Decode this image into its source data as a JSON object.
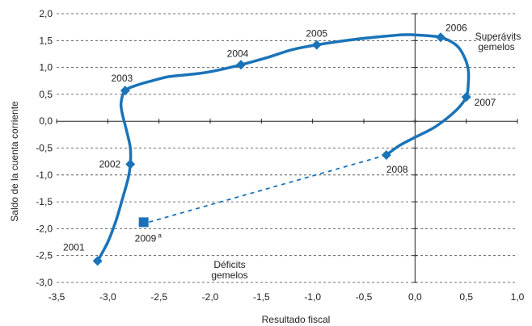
{
  "chart_data": {
    "type": "line",
    "title": "",
    "xlabel": "Resultado fiscal",
    "ylabel": "Saldo de la cuenta corriente",
    "xlim": [
      -3.5,
      1.0
    ],
    "ylim": [
      -3.0,
      2.0
    ],
    "x_ticks": [
      "-3,5",
      "-3,0",
      "-2,5",
      "-2,0",
      "-1,5",
      "-1,0",
      "-0,5",
      "0,0",
      "0,5",
      "1,0"
    ],
    "y_ticks": [
      "2,0",
      "1,5",
      "1,0",
      "0,5",
      "0,0",
      "-0,5",
      "-1,0",
      "-1,5",
      "-2,0",
      "-2,5",
      "-3,0"
    ],
    "x_tick_values": [
      -3.5,
      -3.0,
      -2.5,
      -2.0,
      -1.5,
      -1.0,
      -0.5,
      0.0,
      0.5,
      1.0
    ],
    "y_tick_values": [
      2.0,
      1.5,
      1.0,
      0.5,
      0.0,
      -0.5,
      -1.0,
      -1.5,
      -2.0,
      -2.5,
      -3.0
    ],
    "grid": "horizontal-dashed",
    "color": "#1a73b8",
    "points": [
      {
        "label": "2001",
        "x": -3.1,
        "y": -2.6
      },
      {
        "label": "2002",
        "x": -2.78,
        "y": -0.8
      },
      {
        "label": "2003",
        "x": -2.83,
        "y": 0.57
      },
      {
        "label": "2004",
        "x": -1.7,
        "y": 1.05
      },
      {
        "label": "2005",
        "x": -0.96,
        "y": 1.42
      },
      {
        "label": "2006",
        "x": 0.25,
        "y": 1.56
      },
      {
        "label": "2007",
        "x": 0.5,
        "y": 0.45
      },
      {
        "label": "2008",
        "x": -0.28,
        "y": -0.63
      }
    ],
    "projection": {
      "label": "2009",
      "label_sup": "a",
      "x": -2.65,
      "y": -1.88
    },
    "curve": [
      [
        -3.1,
        -2.6
      ],
      [
        -3.0,
        -2.25
      ],
      [
        -2.92,
        -1.85
      ],
      [
        -2.85,
        -1.4
      ],
      [
        -2.8,
        -1.05
      ],
      [
        -2.78,
        -0.8
      ],
      [
        -2.78,
        -0.5
      ],
      [
        -2.82,
        -0.15
      ],
      [
        -2.86,
        0.15
      ],
      [
        -2.87,
        0.35
      ],
      [
        -2.83,
        0.57
      ],
      [
        -2.7,
        0.68
      ],
      [
        -2.55,
        0.76
      ],
      [
        -2.4,
        0.83
      ],
      [
        -2.2,
        0.87
      ],
      [
        -2.0,
        0.92
      ],
      [
        -1.7,
        1.05
      ],
      [
        -1.45,
        1.18
      ],
      [
        -1.2,
        1.33
      ],
      [
        -0.96,
        1.42
      ],
      [
        -0.6,
        1.52
      ],
      [
        -0.3,
        1.58
      ],
      [
        -0.1,
        1.61
      ],
      [
        0.05,
        1.6
      ],
      [
        0.25,
        1.56
      ],
      [
        0.4,
        1.42
      ],
      [
        0.48,
        1.2
      ],
      [
        0.52,
        0.95
      ],
      [
        0.52,
        0.7
      ],
      [
        0.5,
        0.45
      ],
      [
        0.4,
        0.2
      ],
      [
        0.2,
        -0.1
      ],
      [
        0.0,
        -0.3
      ],
      [
        -0.15,
        -0.45
      ],
      [
        -0.28,
        -0.63
      ]
    ],
    "annotations": {
      "surplus_line1": "Superávits",
      "surplus_line2": "gemelos",
      "deficit_line1": "Déficits",
      "deficit_line2": "gemelos"
    }
  }
}
